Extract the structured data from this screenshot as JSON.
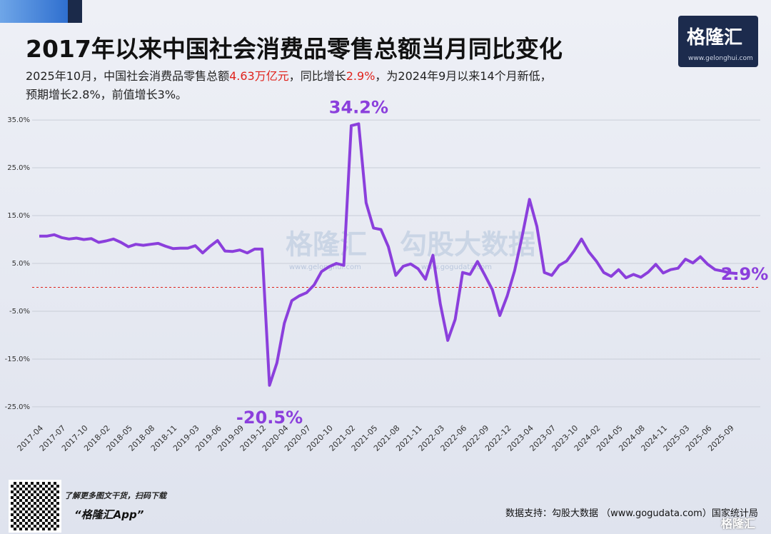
{
  "header": {
    "title": "2017年以来中国社会消费品零售总额当月同比变化",
    "subtitle_lines": [
      [
        {
          "text": "2025年10月，中国社会消费品零售总额"
        },
        {
          "text": "4.63万亿元",
          "color": "#e0231c"
        },
        {
          "text": "，同比增长"
        },
        {
          "text": "2.9%",
          "color": "#e0231c"
        },
        {
          "text": "，为2024年9月以来14个月新低，"
        }
      ],
      [
        {
          "text": "预期增长2.8%，前值增长3%。"
        }
      ]
    ],
    "logo": "格隆汇",
    "logo_url": "www.gelonghui.com"
  },
  "watermark": {
    "left": "格隆汇",
    "left_url": "www.gelonghui.com",
    "right": "勾股大数据",
    "right_url": "www.gogudata.com"
  },
  "chart_data": {
    "type": "line",
    "color": "#8b3fdc",
    "grid": true,
    "reference_line": {
      "value": 0,
      "color": "#e0231c"
    },
    "ylim": [
      -28,
      38
    ],
    "yticks": [
      {
        "value": -25,
        "label": "-25.0%"
      },
      {
        "value": -15,
        "label": "-15.0%"
      },
      {
        "value": -5,
        "label": "-5.0%"
      },
      {
        "value": 5,
        "label": "5.0%"
      },
      {
        "value": 15,
        "label": "15.0%"
      },
      {
        "value": 25,
        "label": "25.0%"
      },
      {
        "value": 35,
        "label": "35.0%"
      }
    ],
    "categories": [
      "2017-04",
      null,
      null,
      "2017-07",
      null,
      null,
      "2017-10",
      null,
      null,
      "2018-02",
      null,
      null,
      "2018-05",
      null,
      null,
      "2018-08",
      null,
      null,
      "2018-11",
      null,
      null,
      "2019-03",
      null,
      null,
      "2019-06",
      null,
      null,
      "2019-09",
      null,
      null,
      "2019-12",
      null,
      null,
      "2020-04",
      null,
      null,
      "2020-07",
      null,
      null,
      "2020-10",
      null,
      null,
      "2021-02",
      null,
      null,
      "2021-05",
      null,
      null,
      "2021-08",
      null,
      null,
      "2021-11",
      null,
      null,
      "2022-03",
      null,
      null,
      "2022-06",
      null,
      null,
      "2022-09",
      null,
      null,
      "2022-12",
      null,
      null,
      "2023-04",
      null,
      null,
      "2023-07",
      null,
      null,
      "2023-10",
      null,
      null,
      "2024-02",
      null,
      null,
      "2024-05",
      null,
      null,
      "2024-08",
      null,
      null,
      "2024-11",
      null,
      null,
      "2025-03",
      null,
      null,
      "2025-06",
      null,
      null,
      "2025-09",
      null
    ],
    "values": [
      10.7,
      10.7,
      11.0,
      10.4,
      10.1,
      10.3,
      10.0,
      10.2,
      9.4,
      9.7,
      10.1,
      9.4,
      8.5,
      9.0,
      8.8,
      9.0,
      9.2,
      8.6,
      8.1,
      8.2,
      8.2,
      8.7,
      7.2,
      8.6,
      9.8,
      7.6,
      7.5,
      7.8,
      7.2,
      8.0,
      8.0,
      -20.5,
      -15.8,
      -7.5,
      -2.8,
      -1.8,
      -1.1,
      0.5,
      3.3,
      4.3,
      5.0,
      4.6,
      33.8,
      34.2,
      17.7,
      12.4,
      12.1,
      8.5,
      2.5,
      4.4,
      4.9,
      3.9,
      1.7,
      6.7,
      -3.5,
      -11.1,
      -6.7,
      3.1,
      2.7,
      5.4,
      2.5,
      -0.5,
      -5.9,
      -1.8,
      3.5,
      10.6,
      18.4,
      12.7,
      3.1,
      2.5,
      4.6,
      5.5,
      7.6,
      10.1,
      7.4,
      5.5,
      3.1,
      2.3,
      3.7,
      2.0,
      2.7,
      2.1,
      3.2,
      4.8,
      3.0,
      3.7,
      4.0,
      5.9,
      5.1,
      6.4,
      4.8,
      3.7,
      3.4,
      3.0,
      2.9
    ],
    "value_labels": [
      null,
      null,
      null,
      null,
      null,
      null,
      null,
      null,
      null,
      null,
      null,
      null,
      null,
      null,
      null,
      null,
      null,
      null,
      null,
      null,
      null,
      null,
      null,
      null,
      null,
      null,
      null,
      null,
      null,
      null,
      null,
      "-20.5%",
      null,
      null,
      null,
      null,
      null,
      null,
      null,
      null,
      null,
      null,
      null,
      "34.2%",
      null,
      null,
      null,
      null,
      null,
      null,
      null,
      null,
      null,
      null,
      null,
      null,
      null,
      null,
      null,
      null,
      null,
      null,
      null,
      null,
      null,
      null,
      null,
      null,
      null,
      null,
      null,
      null,
      null,
      null,
      null,
      null,
      null,
      null,
      null,
      null,
      null,
      null,
      null,
      null,
      null,
      null,
      null,
      null,
      null,
      null,
      null,
      null,
      null,
      null,
      "2.9%"
    ]
  },
  "footer": {
    "qr_caption": "了解更多图文干货，扫码下载",
    "app": "“格隆汇App”",
    "source": "数据支持：勾股大数据 （www.gogudata.com）国家统计局",
    "logo": "格隆汇"
  }
}
